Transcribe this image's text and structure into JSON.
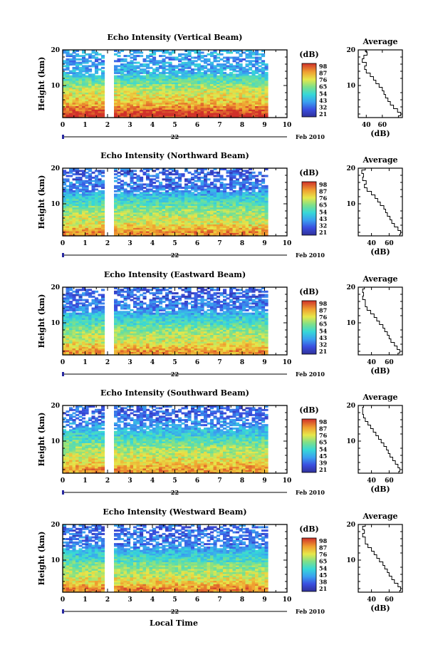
{
  "figure": {
    "xlabel": "Local Time",
    "date_label": "Feb 2010",
    "day_label": "22",
    "avg_xlabel": "(dB)",
    "avg_title": "Average",
    "cb_unit": "(dB)",
    "ylabel": "Height (km)"
  },
  "chart_data": [
    {
      "type": "heatmap",
      "title": "Echo Intensity (Vertical Beam)",
      "ylabel": "Height (km)",
      "x_ticks": [
        "0",
        "1",
        "2",
        "3",
        "4",
        "5",
        "6",
        "7",
        "8",
        "9",
        "10"
      ],
      "y_ticks": [
        "10",
        "20"
      ],
      "xlim": [
        0,
        10
      ],
      "ylim": [
        1,
        20
      ],
      "data_gap_hours": [
        2.0,
        2.3
      ],
      "data_end_hour": 9.2,
      "colorbar": {
        "unit": "(dB)",
        "ticks": [
          "98",
          "87",
          "76",
          "65",
          "54",
          "43",
          "32",
          "21"
        ],
        "range": [
          21,
          98
        ]
      },
      "average_profile": {
        "title": "Average",
        "xlabel": "(dB)",
        "x_ticks": [
          "40",
          "60"
        ],
        "xlim": [
          30,
          85
        ],
        "y_ticks": [
          "10",
          "20"
        ],
        "height_km": [
          1,
          2,
          3,
          4,
          5,
          6,
          7,
          8,
          9,
          10,
          11,
          12,
          13,
          14,
          15,
          16,
          17,
          18,
          19,
          20
        ],
        "db": [
          80,
          83,
          79,
          74,
          70,
          67,
          64,
          62,
          60,
          56,
          52,
          49,
          45,
          40,
          38,
          40,
          35,
          37,
          41,
          39
        ]
      }
    },
    {
      "type": "heatmap",
      "title": "Echo Intensity (Northward Beam)",
      "ylabel": "Height (km)",
      "x_ticks": [
        "0",
        "1",
        "2",
        "3",
        "4",
        "5",
        "6",
        "7",
        "8",
        "9",
        "10"
      ],
      "y_ticks": [
        "10",
        "20"
      ],
      "xlim": [
        0,
        10
      ],
      "ylim": [
        1,
        20
      ],
      "data_gap_hours": [
        2.0,
        2.3
      ],
      "data_end_hour": 9.2,
      "colorbar": {
        "unit": "(dB)",
        "ticks": [
          "98",
          "87",
          "76",
          "65",
          "54",
          "43",
          "32",
          "21"
        ],
        "range": [
          21,
          98
        ]
      },
      "average_profile": {
        "title": "Average",
        "xlabel": "(dB)",
        "x_ticks": [
          "40",
          "60"
        ],
        "xlim": [
          25,
          75
        ],
        "y_ticks": [
          "10",
          "20"
        ],
        "height_km": [
          1,
          2,
          3,
          4,
          5,
          6,
          7,
          8,
          9,
          10,
          11,
          12,
          13,
          14,
          15,
          16,
          17,
          18,
          19,
          20
        ],
        "db": [
          72,
          73,
          70,
          66,
          63,
          61,
          58,
          56,
          54,
          50,
          47,
          44,
          40,
          35,
          32,
          34,
          30,
          31,
          29,
          33
        ]
      }
    },
    {
      "type": "heatmap",
      "title": "Echo Intensity (Eastward Beam)",
      "ylabel": "Height (km)",
      "x_ticks": [
        "0",
        "1",
        "2",
        "3",
        "4",
        "5",
        "6",
        "7",
        "8",
        "9",
        "10"
      ],
      "y_ticks": [
        "10",
        "20"
      ],
      "xlim": [
        0,
        10
      ],
      "ylim": [
        1,
        20
      ],
      "data_gap_hours": [
        2.0,
        2.3
      ],
      "data_end_hour": 9.2,
      "colorbar": {
        "unit": "(dB)",
        "ticks": [
          "98",
          "87",
          "76",
          "65",
          "54",
          "43",
          "32",
          "21"
        ],
        "range": [
          21,
          98
        ]
      },
      "average_profile": {
        "title": "Average",
        "xlabel": "(dB)",
        "x_ticks": [
          "40",
          "60"
        ],
        "xlim": [
          25,
          75
        ],
        "y_ticks": [
          "10",
          "20"
        ],
        "height_km": [
          1,
          2,
          3,
          4,
          5,
          6,
          7,
          8,
          9,
          10,
          11,
          12,
          13,
          14,
          15,
          16,
          17,
          18,
          19,
          20
        ],
        "db": [
          70,
          72,
          69,
          66,
          62,
          60,
          58,
          55,
          53,
          49,
          46,
          43,
          39,
          35,
          33,
          33,
          30,
          31,
          30,
          32
        ]
      }
    },
    {
      "type": "heatmap",
      "title": "Echo Intensity (Southward Beam)",
      "ylabel": "Height (km)",
      "x_ticks": [
        "0",
        "1",
        "2",
        "3",
        "4",
        "5",
        "6",
        "7",
        "8",
        "9",
        "10"
      ],
      "y_ticks": [
        "10",
        "20"
      ],
      "xlim": [
        0,
        10
      ],
      "ylim": [
        1,
        20
      ],
      "data_gap_hours": [
        2.0,
        2.3
      ],
      "data_end_hour": 9.2,
      "colorbar": {
        "unit": "(dB)",
        "ticks": [
          "98",
          "87",
          "76",
          "65",
          "54",
          "45",
          "39",
          "21"
        ],
        "range": [
          21,
          98
        ]
      },
      "average_profile": {
        "title": "Average",
        "xlabel": "(dB)",
        "x_ticks": [
          "40",
          "60"
        ],
        "xlim": [
          25,
          75
        ],
        "y_ticks": [
          "10",
          "20"
        ],
        "height_km": [
          1,
          2,
          3,
          4,
          5,
          6,
          7,
          8,
          9,
          10,
          11,
          12,
          13,
          14,
          15,
          16,
          17,
          18,
          19,
          20
        ],
        "db": [
          71,
          72,
          70,
          67,
          64,
          61,
          59,
          57,
          54,
          51,
          48,
          45,
          42,
          39,
          36,
          33,
          31,
          30,
          30,
          31
        ]
      }
    },
    {
      "type": "heatmap",
      "title": "Echo Intensity (Westward Beam)",
      "ylabel": "Height (km)",
      "x_ticks": [
        "0",
        "1",
        "2",
        "3",
        "4",
        "5",
        "6",
        "7",
        "8",
        "9",
        "10"
      ],
      "y_ticks": [
        "10",
        "20"
      ],
      "xlim": [
        0,
        10
      ],
      "ylim": [
        1,
        20
      ],
      "data_gap_hours": [
        2.0,
        2.3
      ],
      "data_end_hour": 9.2,
      "colorbar": {
        "unit": "(dB)",
        "ticks": [
          "98",
          "87",
          "76",
          "65",
          "54",
          "45",
          "38",
          "21"
        ],
        "range": [
          21,
          98
        ]
      },
      "average_profile": {
        "title": "Average",
        "xlabel": "(dB)",
        "x_ticks": [
          "40",
          "60"
        ],
        "xlim": [
          25,
          75
        ],
        "y_ticks": [
          "10",
          "20"
        ],
        "height_km": [
          1,
          2,
          3,
          4,
          5,
          6,
          7,
          8,
          9,
          10,
          11,
          12,
          13,
          14,
          15,
          16,
          17,
          18,
          19,
          20
        ],
        "db": [
          72,
          73,
          70,
          66,
          63,
          60,
          58,
          55,
          53,
          49,
          46,
          43,
          40,
          36,
          33,
          33,
          30,
          32,
          30,
          33
        ]
      }
    }
  ]
}
